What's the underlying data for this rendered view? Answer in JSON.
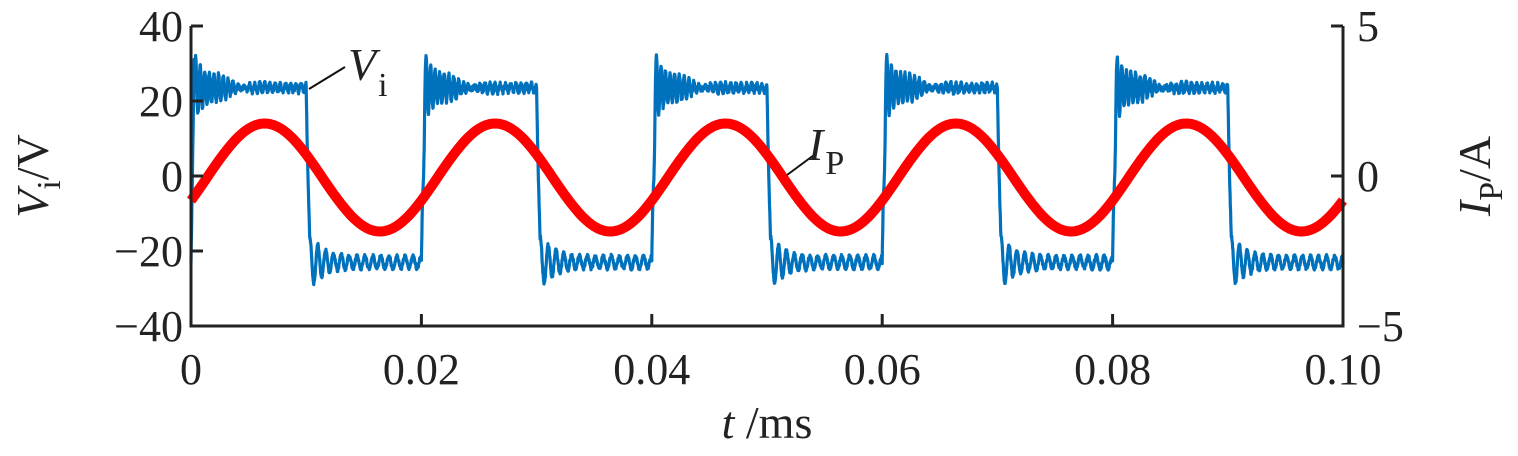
{
  "chart_data": {
    "type": "line",
    "xlabel": {
      "var": "t",
      "unit": " /ms"
    },
    "ylabel_left": {
      "var": "V",
      "sub": "i",
      "unit": "/V"
    },
    "ylabel_right": {
      "var": "I",
      "sub": "P",
      "unit": "/A"
    },
    "xlim": [
      0,
      0.1
    ],
    "ylim_left": [
      -40,
      40
    ],
    "ylim_right": [
      -5,
      5
    ],
    "x_ticks": [
      "0",
      "0.02",
      "0.04",
      "0.06",
      "0.08",
      "0.10"
    ],
    "x_tick_values": [
      0,
      0.02,
      0.04,
      0.06,
      0.08,
      0.1
    ],
    "y_ticks_left": [
      "40",
      "20",
      "0",
      "−20",
      "−40"
    ],
    "y_tick_values_left": [
      40,
      20,
      0,
      -20,
      -40
    ],
    "y_ticks_right": [
      "5",
      "0",
      "−5"
    ],
    "y_tick_values_right": [
      5,
      0,
      -5
    ],
    "grid": false,
    "series": [
      {
        "name": "Vi",
        "label_var": "V",
        "label_sub": "i",
        "axis": "left",
        "color": "#0072BD",
        "shape": "square-wave",
        "period_ms": 0.02,
        "high_level": 23.5,
        "low_level": -23,
        "high_overshoot_peak": 35,
        "low_undershoot_peak": -31,
        "high_ringing_period_ms": 0.0004,
        "low_ringing_period_ms": 0.0007,
        "ringing_decay_ms": 0.0016
      },
      {
        "name": "IP",
        "label_var": "I",
        "label_sub": "P",
        "axis": "right",
        "color": "#FF0000",
        "shape": "sine",
        "period_ms": 0.02,
        "amplitude_A": 1.8,
        "offset_A": -0.05,
        "peak_times_ms": [
          0.0064,
          0.0264,
          0.0464,
          0.0664,
          0.0864
        ],
        "value_at_t0_A": -0.8
      }
    ]
  }
}
